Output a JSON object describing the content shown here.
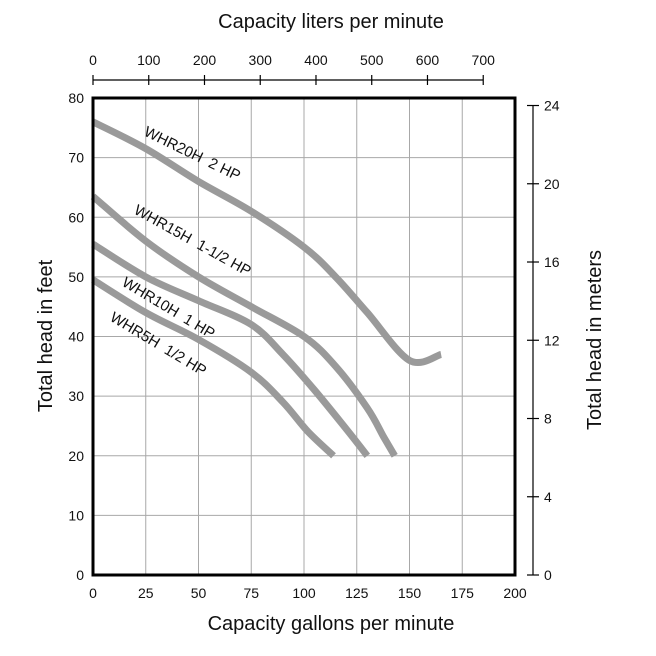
{
  "chart_data": {
    "type": "line",
    "x_gpm": {
      "label": "Capacity gallons per minute",
      "range": [
        0,
        200
      ],
      "ticks": [
        0,
        25,
        50,
        75,
        100,
        125,
        150,
        175,
        200
      ]
    },
    "x_lpm": {
      "label": "Capacity liters per minute",
      "range": [
        0,
        757
      ],
      "ticks": [
        0,
        100,
        200,
        300,
        400,
        500,
        600,
        700
      ]
    },
    "y_feet": {
      "label": "Total head in feet",
      "range": [
        0,
        80
      ],
      "ticks": [
        0,
        10,
        20,
        30,
        40,
        50,
        60,
        70,
        80
      ]
    },
    "y_meters": {
      "label": "Total head in meters",
      "range": [
        0,
        24.384
      ],
      "ticks": [
        0,
        4,
        8,
        12,
        16,
        20,
        24
      ]
    },
    "grid": true,
    "series": [
      {
        "name": "WHR20H  2 HP",
        "x": [
          0,
          25,
          50,
          75,
          100,
          115,
          130,
          150,
          165
        ],
        "y": [
          76,
          71.5,
          66,
          61,
          55,
          50,
          44,
          36,
          37
        ]
      },
      {
        "name": "WHR15H  1-1/2 HP",
        "x": [
          0,
          25,
          50,
          75,
          100,
          115,
          130,
          138,
          143
        ],
        "y": [
          63.5,
          56,
          50,
          45,
          40,
          35,
          28,
          23,
          20
        ]
      },
      {
        "name": "WHR10H  1 HP",
        "x": [
          0,
          25,
          50,
          75,
          90,
          105,
          120,
          130
        ],
        "y": [
          55.5,
          50,
          46,
          42,
          37,
          31,
          24.5,
          20
        ]
      },
      {
        "name": "WHR5H  1/2 HP",
        "x": [
          0,
          25,
          50,
          75,
          90,
          102,
          114
        ],
        "y": [
          49.5,
          44,
          39.5,
          34,
          29,
          24,
          20
        ]
      }
    ]
  }
}
